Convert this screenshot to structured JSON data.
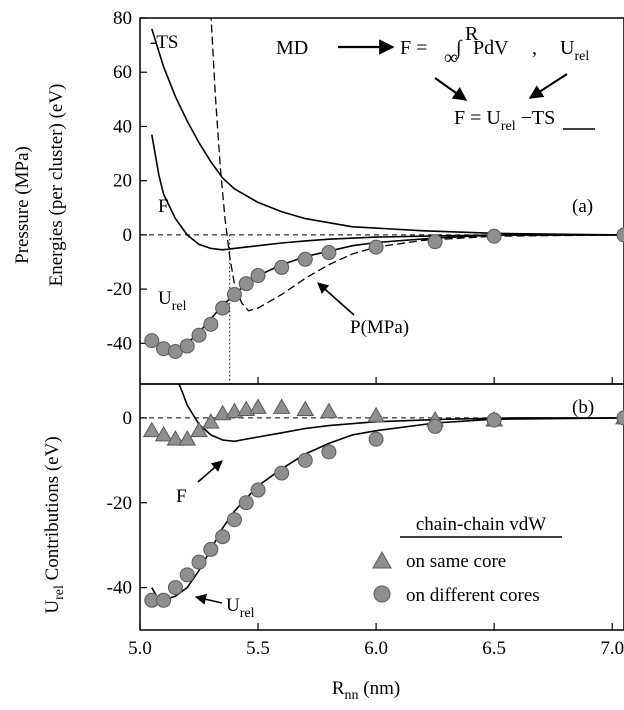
{
  "chart_data": [
    {
      "panel": "(a)",
      "type": "line",
      "ylabel_outer": "Pressure (MPa)",
      "ylabel_inner": "Energies (per cluster) (eV)",
      "xlim": [
        5.0,
        7.05
      ],
      "ylim": [
        -55,
        80
      ],
      "yticks": [
        "80",
        "60",
        "40",
        "20",
        "0",
        "-20",
        "-40"
      ],
      "ytick_values": [
        80,
        60,
        40,
        20,
        0,
        -20,
        -40
      ],
      "vline_x": 5.38,
      "series": [
        {
          "name": "-TS",
          "style": "solid",
          "x": [
            5.05,
            5.1,
            5.15,
            5.2,
            5.25,
            5.3,
            5.35,
            5.4,
            5.5,
            5.6,
            5.7,
            5.8,
            5.9,
            6.0,
            6.2,
            6.5,
            6.8,
            7.05
          ],
          "y": [
            76,
            62,
            51,
            42,
            34,
            27,
            21,
            17,
            12,
            8.5,
            6,
            4.5,
            3,
            2.5,
            1.5,
            0.6,
            0.2,
            0
          ]
        },
        {
          "name": "F",
          "style": "solid",
          "x": [
            5.05,
            5.08,
            5.1,
            5.15,
            5.2,
            5.25,
            5.3,
            5.35,
            5.4,
            5.45,
            5.5,
            5.6,
            5.7,
            5.8,
            6.0,
            6.3,
            6.6,
            7.05
          ],
          "y": [
            37,
            22,
            15,
            6,
            0,
            -3.5,
            -5,
            -5.5,
            -5,
            -4.5,
            -4,
            -3,
            -2.2,
            -1.6,
            -0.8,
            -0.3,
            0,
            0
          ]
        },
        {
          "name": "U_rel",
          "style": "solid",
          "x": [
            5.08,
            5.12,
            5.15,
            5.2,
            5.25,
            5.3,
            5.35,
            5.4,
            5.45,
            5.5,
            5.6,
            5.7,
            5.8,
            5.9,
            6.0,
            6.25,
            6.5,
            7.05
          ],
          "y": [
            -43,
            -43,
            -42,
            -40,
            -36,
            -31,
            -26,
            -22,
            -18,
            -15,
            -11,
            -8,
            -6,
            -4,
            -2.8,
            -1.2,
            0,
            0
          ]
        },
        {
          "name": "P(MPa)",
          "style": "dashed",
          "x": [
            5.3,
            5.32,
            5.34,
            5.36,
            5.38,
            5.4,
            5.43,
            5.46,
            5.5,
            5.6,
            5.7,
            5.8,
            5.9,
            6.0,
            6.2,
            6.5,
            7.05
          ],
          "y": [
            82,
            50,
            25,
            6,
            -8,
            -18,
            -25,
            -28,
            -27,
            -22,
            -16,
            -11,
            -7,
            -4.5,
            -2,
            -0.5,
            0
          ]
        },
        {
          "name": "MD",
          "style": "circles",
          "x": [
            5.05,
            5.1,
            5.15,
            5.2,
            5.25,
            5.3,
            5.35,
            5.4,
            5.45,
            5.5,
            5.6,
            5.7,
            5.8,
            6.0,
            6.25,
            6.5,
            7.05
          ],
          "y": [
            -39,
            -42,
            -43,
            -41,
            -37,
            -33,
            -27,
            -22,
            -18,
            -15,
            -12,
            -9,
            -6.5,
            -4.5,
            -2.5,
            -0.5,
            0
          ]
        }
      ],
      "annotations": {
        "ts_label": "-TS",
        "f_label": "F",
        "urel_label_main": "U",
        "urel_label_sub": "rel",
        "p_label": "P(MPa)",
        "panel_label": "(a)",
        "md": "MD",
        "eq1_lhs": "F = ",
        "eq1_lower": "∞",
        "eq1_integral": "∫",
        "eq1_upper": "R",
        "eq1_rest": " PdV",
        "eq1_comma": ",",
        "eq1_u": "U",
        "eq1_u_sub": "rel",
        "eq2_lhs": "F = U",
        "eq2_sub": "rel",
        "eq2_minus": " −",
        "eq2_ts": "TS"
      }
    },
    {
      "panel": "(b)",
      "type": "line",
      "ylabel_main": "U",
      "ylabel_sub": "rel",
      "ylabel_rest": " Contributions (eV)",
      "xlabel_main": "R",
      "xlabel_sub": "nn",
      "xlabel_rest": " (nm)",
      "xlim": [
        5.0,
        7.05
      ],
      "ylim": [
        -50,
        8
      ],
      "yticks": [
        "0",
        "-20",
        "-40"
      ],
      "ytick_values": [
        0,
        -20,
        -40
      ],
      "xticks": [
        "5.0",
        "5.5",
        "6.0",
        "6.5",
        "7.0"
      ],
      "xtick_values": [
        5.0,
        5.5,
        6.0,
        6.5,
        7.0
      ],
      "series": [
        {
          "name": "F",
          "style": "solid",
          "x": [
            5.15,
            5.18,
            5.2,
            5.25,
            5.3,
            5.35,
            5.4,
            5.45,
            5.5,
            5.6,
            5.7,
            5.8,
            6.0,
            6.3,
            6.6,
            7.05
          ],
          "y": [
            10,
            6,
            3,
            -1.5,
            -4,
            -5.2,
            -5.5,
            -5,
            -4.5,
            -3.5,
            -2.5,
            -1.8,
            -0.9,
            -0.3,
            0,
            0
          ]
        },
        {
          "name": "U_rel",
          "style": "solid",
          "x": [
            5.05,
            5.08,
            5.1,
            5.15,
            5.2,
            5.25,
            5.3,
            5.35,
            5.4,
            5.45,
            5.5,
            5.6,
            5.7,
            5.8,
            5.9,
            6.0,
            6.25,
            6.5,
            7.05
          ],
          "y": [
            -40,
            -43,
            -43,
            -42,
            -40,
            -36,
            -31,
            -26,
            -22,
            -19,
            -16,
            -12,
            -8.5,
            -6,
            -4,
            -3,
            -1.2,
            -0.3,
            0
          ]
        },
        {
          "name": "on same core",
          "style": "triangles",
          "x": [
            5.05,
            5.1,
            5.15,
            5.2,
            5.25,
            5.3,
            5.35,
            5.4,
            5.45,
            5.5,
            5.6,
            5.7,
            5.8,
            6.0,
            6.25,
            6.5,
            7.05
          ],
          "y": [
            -3,
            -4,
            -5,
            -5,
            -3,
            -1,
            1,
            1.5,
            2,
            2.5,
            2.5,
            2,
            1.5,
            0.5,
            -0.5,
            -0.5,
            0
          ]
        },
        {
          "name": "on different cores",
          "style": "circles",
          "x": [
            5.05,
            5.1,
            5.15,
            5.2,
            5.25,
            5.3,
            5.35,
            5.4,
            5.45,
            5.5,
            5.6,
            5.7,
            5.8,
            6.0,
            6.25,
            6.5,
            7.05
          ],
          "y": [
            -43,
            -43,
            -40,
            -37,
            -34,
            -31,
            -28,
            -24,
            -20,
            -17,
            -13,
            -10,
            -8,
            -5,
            -2,
            -0.5,
            0
          ]
        }
      ],
      "annotations": {
        "panel_label": "(b)",
        "f_label": "F",
        "urel_label_main": "U",
        "urel_label_sub": "rel"
      },
      "legend": {
        "title": "chain-chain vdW",
        "placement": "bottom-right",
        "items": [
          "on same core",
          "on different cores"
        ]
      }
    }
  ]
}
